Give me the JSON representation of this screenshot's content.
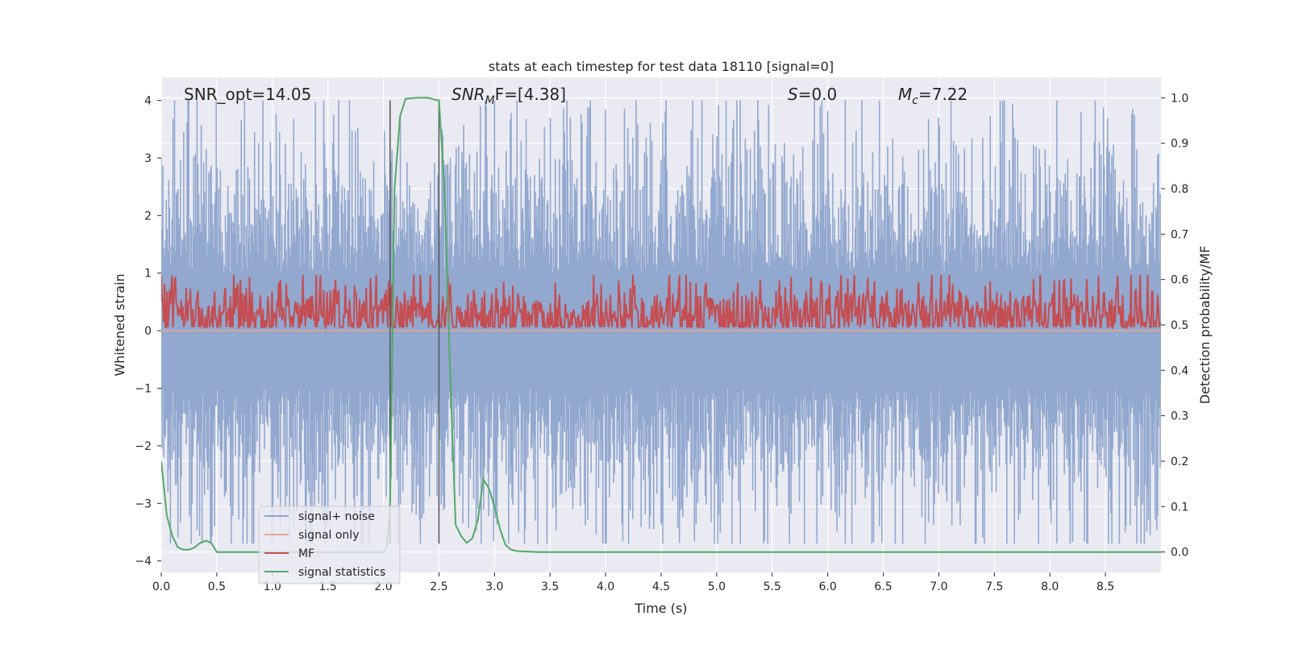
{
  "chart_data": {
    "type": "line",
    "title": "stats at each timestep for test data 18110 [signal=0]",
    "xlabel": "Time (s)",
    "ylabel": "Whitened strain",
    "y2label": "Detection probability/MF",
    "xlim": [
      0,
      9.0
    ],
    "ylim": [
      -4.2,
      4.4
    ],
    "y2lim": [
      -0.045,
      1.045
    ],
    "xticks": [
      "0.0",
      "0.5",
      "1.0",
      "1.5",
      "2.0",
      "2.5",
      "3.0",
      "3.5",
      "4.0",
      "4.5",
      "5.0",
      "5.5",
      "6.0",
      "6.5",
      "7.0",
      "7.5",
      "8.0",
      "8.5"
    ],
    "yticks": [
      "4",
      "3",
      "2",
      "1",
      "0",
      "−1",
      "−2",
      "−3",
      "−4"
    ],
    "y2ticks": [
      "1.0",
      "0.9",
      "0.8",
      "0.7",
      "0.6",
      "0.5",
      "0.4",
      "0.3",
      "0.2",
      "0.1",
      "0.0"
    ],
    "grid": true,
    "legend_position": "lower-left",
    "annotations": {
      "snr_opt": "SNR_opt=14.05",
      "snr_mf_name": "SNR",
      "snr_mf_sub": "M",
      "snr_mf_rest": "F=[4.38]",
      "s_name": "S",
      "s_rest": "=0.0",
      "mc_name": "M",
      "mc_sub": "c",
      "mc_rest": "=7.22"
    },
    "vlines_x": [
      2.06,
      2.5
    ],
    "vlines_range": [
      -3.7,
      4.0
    ],
    "series": [
      {
        "name": "signal+ noise",
        "color": "#92a8cf",
        "axis": "left",
        "noise_amplitude": 2.6,
        "samples": 1200
      },
      {
        "name": "signal only",
        "color": "#e8a68d",
        "axis": "left",
        "x": [
          0,
          9.0
        ],
        "y": [
          0,
          0
        ]
      },
      {
        "name": "MF",
        "color": "#c44e52",
        "axis": "right",
        "base": 0.52,
        "amplitude": 0.06,
        "samples": 1200
      },
      {
        "name": "signal statistics",
        "color": "#55a868",
        "axis": "right",
        "x": [
          0.0,
          0.05,
          0.1,
          0.15,
          0.2,
          0.25,
          0.3,
          0.35,
          0.4,
          0.45,
          0.5,
          0.6,
          0.8,
          1.0,
          1.2,
          1.5,
          1.8,
          2.0,
          2.03,
          2.06,
          2.1,
          2.15,
          2.2,
          2.3,
          2.4,
          2.48,
          2.5,
          2.55,
          2.6,
          2.65,
          2.7,
          2.75,
          2.8,
          2.85,
          2.9,
          2.95,
          3.0,
          3.05,
          3.1,
          3.15,
          3.2,
          3.3,
          3.4,
          3.5,
          4.0,
          5.0,
          6.0,
          7.0,
          8.0,
          9.0
        ],
        "y": [
          0.2,
          0.08,
          0.035,
          0.01,
          0.005,
          0.005,
          0.01,
          0.02,
          0.025,
          0.02,
          0.0,
          0.0,
          0.0,
          0.0,
          0.0,
          0.0,
          0.0,
          0.0,
          0.01,
          0.1,
          0.8,
          0.96,
          0.998,
          1.0,
          1.0,
          0.995,
          0.995,
          0.8,
          0.4,
          0.06,
          0.035,
          0.02,
          0.03,
          0.07,
          0.16,
          0.14,
          0.1,
          0.05,
          0.015,
          0.005,
          0.002,
          0.001,
          0.0,
          0.0,
          0.0,
          0.0,
          0.0,
          0.0,
          0.0,
          0.0
        ]
      }
    ]
  }
}
